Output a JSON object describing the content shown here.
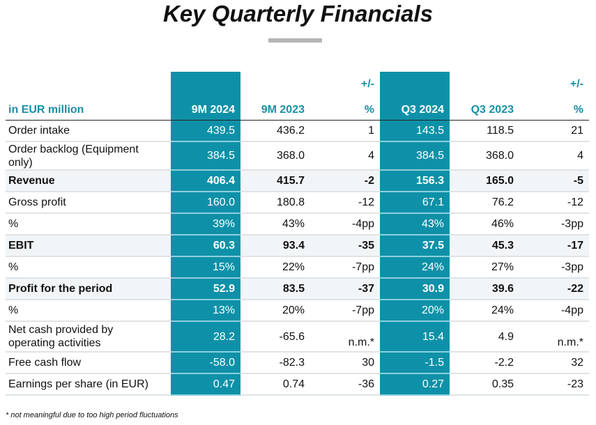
{
  "title": "Key Quarterly Financials",
  "table": {
    "headers": [
      {
        "line1": "",
        "line2": "in EUR million"
      },
      {
        "line1": "",
        "line2": "9M 2024"
      },
      {
        "line1": "",
        "line2": "9M 2023"
      },
      {
        "line1": "+/-",
        "line2": "%"
      },
      {
        "line1": "",
        "line2": "Q3 2024"
      },
      {
        "line1": "",
        "line2": "Q3 2023"
      },
      {
        "line1": "+/-",
        "line2": "%"
      }
    ],
    "rows": [
      {
        "label": "Order intake",
        "values": [
          "439.5",
          "436.2",
          "1",
          "143.5",
          "118.5",
          "21"
        ]
      },
      {
        "label": "Order backlog (Equipment only)",
        "values": [
          "384.5",
          "368.0",
          "4",
          "384.5",
          "368.0",
          "4"
        ]
      },
      {
        "label": "Revenue",
        "values": [
          "406.4",
          "415.7",
          "-2",
          "156.3",
          "165.0",
          "-5"
        ]
      },
      {
        "label": "Gross profit",
        "values": [
          "160.0",
          "180.8",
          "-12",
          "67.1",
          "76.2",
          "-12"
        ]
      },
      {
        "label": "%",
        "values": [
          "39%",
          "43%",
          "-4pp",
          "43%",
          "46%",
          "-3pp"
        ]
      },
      {
        "label": "EBIT",
        "values": [
          "60.3",
          "93.4",
          "-35",
          "37.5",
          "45.3",
          "-17"
        ]
      },
      {
        "label": "%",
        "values": [
          "15%",
          "22%",
          "-7pp",
          "24%",
          "27%",
          "-3pp"
        ]
      },
      {
        "label": "Profit for the period",
        "values": [
          "52.9",
          "83.5",
          "-37",
          "30.9",
          "39.6",
          "-22"
        ]
      },
      {
        "label": "%",
        "values": [
          "13%",
          "20%",
          "-7pp",
          "20%",
          "24%",
          "-4pp"
        ]
      },
      {
        "label": "Net cash provided by operating activities",
        "values": [
          "28.2",
          "-65.6",
          "n.m.*",
          "15.4",
          "4.9",
          "n.m.*"
        ]
      },
      {
        "label": "Free cash flow",
        "values": [
          "-58.0",
          "-82.3",
          "30",
          "-1.5",
          "-2.2",
          "32"
        ]
      },
      {
        "label": "Earnings per share (in EUR)",
        "values": [
          "0.47",
          "0.74",
          "-36",
          "0.27",
          "0.35",
          "-23"
        ]
      }
    ]
  },
  "footnote": "* not meaningful due to too high period fluctuations",
  "colors": {
    "accent": "#0e91a8",
    "header_text": "#1a8fa5"
  }
}
